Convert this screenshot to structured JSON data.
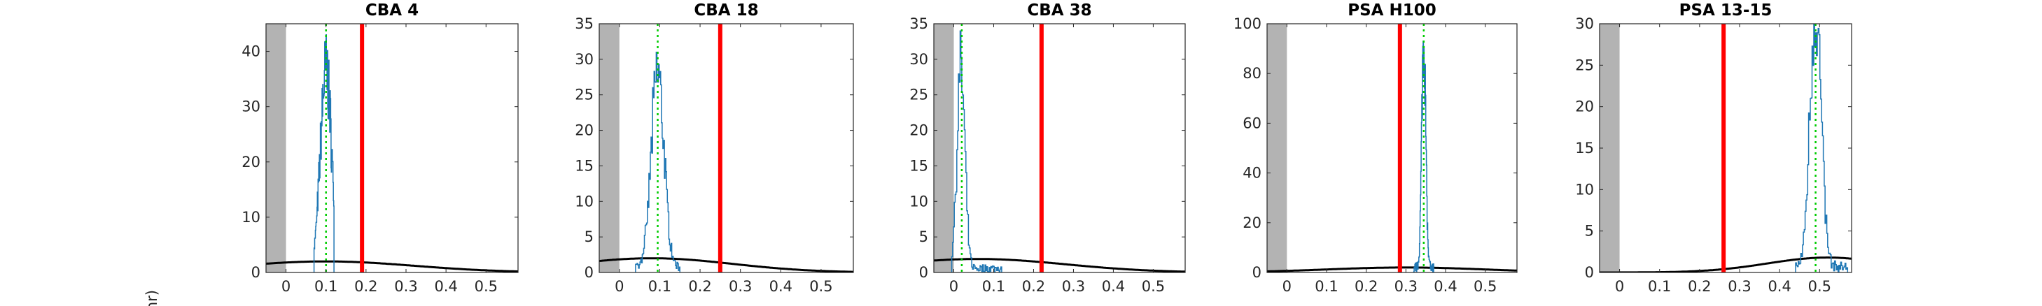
{
  "figure": {
    "ylabel_fragment": "nr)"
  },
  "colors": {
    "hist": "#1f77b4",
    "fit": "#00cc00",
    "vline": "#ff0000",
    "prior": "#000000",
    "shade": "#b3b3b3"
  },
  "chart_data": [
    {
      "type": "line",
      "title": "CBA 4",
      "xlim": [
        -0.05,
        0.58
      ],
      "ylim": [
        0,
        45
      ],
      "xticks": [
        0,
        0.1,
        0.2,
        0.3,
        0.4,
        0.5
      ],
      "xtick_labels": [
        "0",
        "0.1",
        "0.2",
        "0.3",
        "0.4",
        "0.5"
      ],
      "yticks": [
        0,
        10,
        20,
        30,
        40
      ],
      "ytick_labels": [
        "0",
        "10",
        "20",
        "30",
        "40"
      ],
      "shaded_region": [
        -0.05,
        0
      ],
      "red_line_x": 0.19,
      "green_line_x": 0.1,
      "hist_peak": 43,
      "hist_center": 0.1,
      "hist_width": 0.014,
      "hist_range": [
        0.07,
        0.12
      ],
      "prior": {
        "mu": 0.1,
        "sigma": 0.22,
        "peak": 2
      }
    },
    {
      "type": "line",
      "title": "CBA 18",
      "xlim": [
        -0.05,
        0.58
      ],
      "ylim": [
        0,
        35
      ],
      "xticks": [
        0,
        0.1,
        0.2,
        0.3,
        0.4,
        0.5
      ],
      "xtick_labels": [
        "0",
        "0.1",
        "0.2",
        "0.3",
        "0.4",
        "0.5"
      ],
      "yticks": [
        0,
        5,
        10,
        15,
        20,
        25,
        30,
        35
      ],
      "ytick_labels": [
        "0",
        "5",
        "10",
        "15",
        "20",
        "25",
        "30",
        "35"
      ],
      "shaded_region": [
        -0.05,
        0
      ],
      "red_line_x": 0.25,
      "green_line_x": 0.095,
      "hist_peak": 31,
      "hist_center": 0.095,
      "hist_width": 0.016,
      "hist_range": [
        0.04,
        0.15
      ],
      "prior": {
        "mu": 0.08,
        "sigma": 0.2,
        "peak": 2
      }
    },
    {
      "type": "line",
      "title": "CBA 38",
      "xlim": [
        -0.05,
        0.58
      ],
      "ylim": [
        0,
        35
      ],
      "xticks": [
        0,
        0.1,
        0.2,
        0.3,
        0.4,
        0.5
      ],
      "xtick_labels": [
        "0",
        "0.1",
        "0.2",
        "0.3",
        "0.4",
        "0.5"
      ],
      "yticks": [
        0,
        5,
        10,
        15,
        20,
        25,
        30,
        35
      ],
      "ytick_labels": [
        "0",
        "5",
        "10",
        "15",
        "20",
        "25",
        "30",
        "35"
      ],
      "shaded_region": [
        -0.05,
        0
      ],
      "red_line_x": 0.22,
      "green_line_x": 0.02,
      "hist_peak": 34,
      "hist_center": 0.018,
      "hist_width": 0.01,
      "hist_range": [
        -0.005,
        0.12
      ],
      "prior": {
        "mu": 0.06,
        "sigma": 0.22,
        "peak": 1.9
      }
    },
    {
      "type": "line",
      "title": "PSA H100",
      "xlim": [
        -0.05,
        0.58
      ],
      "ylim": [
        0,
        100
      ],
      "xticks": [
        0,
        0.1,
        0.2,
        0.3,
        0.4,
        0.5
      ],
      "xtick_labels": [
        "0",
        "0.1",
        "0.2",
        "0.3",
        "0.4",
        "0.5"
      ],
      "yticks": [
        0,
        20,
        40,
        60,
        80,
        100
      ],
      "ytick_labels": [
        "0",
        "20",
        "40",
        "60",
        "80",
        "100"
      ],
      "shaded_region": [
        -0.05,
        0
      ],
      "red_line_x": 0.285,
      "green_line_x": 0.345,
      "hist_peak": 93,
      "hist_center": 0.345,
      "hist_width": 0.005,
      "hist_range": [
        0.32,
        0.37
      ],
      "prior": {
        "mu": 0.3,
        "sigma": 0.2,
        "peak": 2
      }
    },
    {
      "type": "line",
      "title": "PSA 13-15",
      "xlim": [
        -0.05,
        0.58
      ],
      "ylim": [
        0,
        30
      ],
      "xticks": [
        0,
        0.1,
        0.2,
        0.3,
        0.4,
        0.5
      ],
      "xtick_labels": [
        "0",
        "0.1",
        "0.2",
        "0.3",
        "0.4",
        "0.5"
      ],
      "yticks": [
        0,
        5,
        10,
        15,
        20,
        25,
        30
      ],
      "ytick_labels": [
        "0",
        "5",
        "10",
        "15",
        "20",
        "25",
        "30"
      ],
      "shaded_region": [
        -0.05,
        0
      ],
      "red_line_x": 0.26,
      "green_line_x": 0.49,
      "hist_peak": 30,
      "hist_center": 0.49,
      "hist_width": 0.014,
      "hist_range": [
        0.44,
        0.57
      ],
      "prior": {
        "mu": 0.52,
        "sigma": 0.15,
        "peak": 1.8
      }
    }
  ]
}
